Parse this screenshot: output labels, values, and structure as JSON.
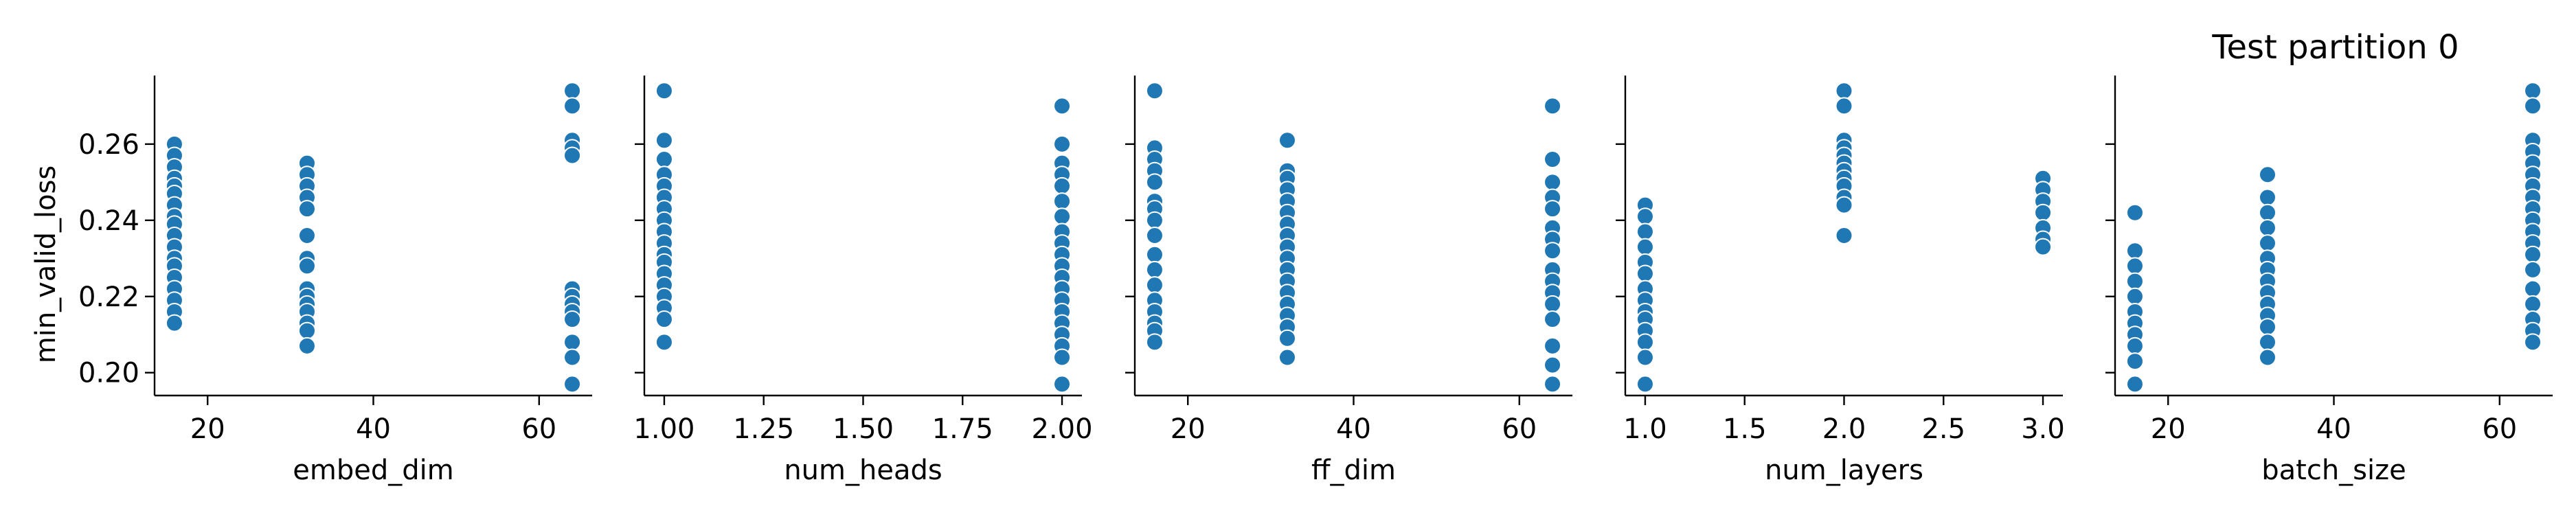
{
  "figure": {
    "title": "Test partition 0",
    "ylabel": "min_valid_loss"
  },
  "colors": {
    "marker": "#1f77b4",
    "marker_edge": "#ffffff",
    "axis": "#000000"
  },
  "chart_data": [
    {
      "type": "scatter",
      "xlabel": "embed_dim",
      "ylabel": "min_valid_loss",
      "xlim": [
        13.6,
        66.4
      ],
      "ylim": [
        0.194,
        0.278
      ],
      "x_ticks": [
        20,
        40,
        60
      ],
      "x_tick_labels": [
        "20",
        "40",
        "60"
      ],
      "y_ticks": [
        0.2,
        0.22,
        0.24,
        0.26
      ],
      "y_tick_labels": [
        "0.20",
        "0.22",
        "0.24",
        "0.26"
      ],
      "points": [
        {
          "x": 16,
          "y": 0.26
        },
        {
          "x": 16,
          "y": 0.257
        },
        {
          "x": 16,
          "y": 0.254
        },
        {
          "x": 16,
          "y": 0.251
        },
        {
          "x": 16,
          "y": 0.249
        },
        {
          "x": 16,
          "y": 0.247
        },
        {
          "x": 16,
          "y": 0.244
        },
        {
          "x": 16,
          "y": 0.241
        },
        {
          "x": 16,
          "y": 0.239
        },
        {
          "x": 16,
          "y": 0.236
        },
        {
          "x": 16,
          "y": 0.233
        },
        {
          "x": 16,
          "y": 0.23
        },
        {
          "x": 16,
          "y": 0.228
        },
        {
          "x": 16,
          "y": 0.225
        },
        {
          "x": 16,
          "y": 0.222
        },
        {
          "x": 16,
          "y": 0.219
        },
        {
          "x": 16,
          "y": 0.216
        },
        {
          "x": 16,
          "y": 0.213
        },
        {
          "x": 32,
          "y": 0.255
        },
        {
          "x": 32,
          "y": 0.252
        },
        {
          "x": 32,
          "y": 0.249
        },
        {
          "x": 32,
          "y": 0.246
        },
        {
          "x": 32,
          "y": 0.243
        },
        {
          "x": 32,
          "y": 0.236
        },
        {
          "x": 32,
          "y": 0.23
        },
        {
          "x": 32,
          "y": 0.228
        },
        {
          "x": 32,
          "y": 0.222
        },
        {
          "x": 32,
          "y": 0.22
        },
        {
          "x": 32,
          "y": 0.218
        },
        {
          "x": 32,
          "y": 0.216
        },
        {
          "x": 32,
          "y": 0.213
        },
        {
          "x": 32,
          "y": 0.211
        },
        {
          "x": 32,
          "y": 0.207
        },
        {
          "x": 64,
          "y": 0.274
        },
        {
          "x": 64,
          "y": 0.27
        },
        {
          "x": 64,
          "y": 0.261
        },
        {
          "x": 64,
          "y": 0.259
        },
        {
          "x": 64,
          "y": 0.257
        },
        {
          "x": 64,
          "y": 0.222
        },
        {
          "x": 64,
          "y": 0.22
        },
        {
          "x": 64,
          "y": 0.218
        },
        {
          "x": 64,
          "y": 0.216
        },
        {
          "x": 64,
          "y": 0.214
        },
        {
          "x": 64,
          "y": 0.208
        },
        {
          "x": 64,
          "y": 0.204
        },
        {
          "x": 64,
          "y": 0.197
        }
      ]
    },
    {
      "type": "scatter",
      "xlabel": "num_heads",
      "xlim": [
        0.95,
        2.05
      ],
      "ylim": [
        0.194,
        0.278
      ],
      "x_ticks": [
        1.0,
        1.25,
        1.5,
        1.75,
        2.0
      ],
      "x_tick_labels": [
        "1.00",
        "1.25",
        "1.50",
        "1.75",
        "2.00"
      ],
      "y_ticks": [
        0.2,
        0.22,
        0.24,
        0.26
      ],
      "points": [
        {
          "x": 1,
          "y": 0.274
        },
        {
          "x": 1,
          "y": 0.261
        },
        {
          "x": 1,
          "y": 0.256
        },
        {
          "x": 1,
          "y": 0.252
        },
        {
          "x": 1,
          "y": 0.249
        },
        {
          "x": 1,
          "y": 0.246
        },
        {
          "x": 1,
          "y": 0.243
        },
        {
          "x": 1,
          "y": 0.24
        },
        {
          "x": 1,
          "y": 0.237
        },
        {
          "x": 1,
          "y": 0.234
        },
        {
          "x": 1,
          "y": 0.231
        },
        {
          "x": 1,
          "y": 0.229
        },
        {
          "x": 1,
          "y": 0.226
        },
        {
          "x": 1,
          "y": 0.223
        },
        {
          "x": 1,
          "y": 0.22
        },
        {
          "x": 1,
          "y": 0.217
        },
        {
          "x": 1,
          "y": 0.214
        },
        {
          "x": 1,
          "y": 0.208
        },
        {
          "x": 2,
          "y": 0.27
        },
        {
          "x": 2,
          "y": 0.26
        },
        {
          "x": 2,
          "y": 0.255
        },
        {
          "x": 2,
          "y": 0.252
        },
        {
          "x": 2,
          "y": 0.249
        },
        {
          "x": 2,
          "y": 0.245
        },
        {
          "x": 2,
          "y": 0.241
        },
        {
          "x": 2,
          "y": 0.237
        },
        {
          "x": 2,
          "y": 0.234
        },
        {
          "x": 2,
          "y": 0.231
        },
        {
          "x": 2,
          "y": 0.228
        },
        {
          "x": 2,
          "y": 0.225
        },
        {
          "x": 2,
          "y": 0.222
        },
        {
          "x": 2,
          "y": 0.219
        },
        {
          "x": 2,
          "y": 0.216
        },
        {
          "x": 2,
          "y": 0.213
        },
        {
          "x": 2,
          "y": 0.21
        },
        {
          "x": 2,
          "y": 0.207
        },
        {
          "x": 2,
          "y": 0.204
        },
        {
          "x": 2,
          "y": 0.197
        }
      ]
    },
    {
      "type": "scatter",
      "xlabel": "ff_dim",
      "xlim": [
        13.6,
        66.4
      ],
      "ylim": [
        0.194,
        0.278
      ],
      "x_ticks": [
        20,
        40,
        60
      ],
      "x_tick_labels": [
        "20",
        "40",
        "60"
      ],
      "y_ticks": [
        0.2,
        0.22,
        0.24,
        0.26
      ],
      "points": [
        {
          "x": 16,
          "y": 0.274
        },
        {
          "x": 16,
          "y": 0.259
        },
        {
          "x": 16,
          "y": 0.256
        },
        {
          "x": 16,
          "y": 0.253
        },
        {
          "x": 16,
          "y": 0.25
        },
        {
          "x": 16,
          "y": 0.245
        },
        {
          "x": 16,
          "y": 0.243
        },
        {
          "x": 16,
          "y": 0.24
        },
        {
          "x": 16,
          "y": 0.236
        },
        {
          "x": 16,
          "y": 0.231
        },
        {
          "x": 16,
          "y": 0.227
        },
        {
          "x": 16,
          "y": 0.223
        },
        {
          "x": 16,
          "y": 0.219
        },
        {
          "x": 16,
          "y": 0.216
        },
        {
          "x": 16,
          "y": 0.213
        },
        {
          "x": 16,
          "y": 0.211
        },
        {
          "x": 16,
          "y": 0.208
        },
        {
          "x": 32,
          "y": 0.261
        },
        {
          "x": 32,
          "y": 0.253
        },
        {
          "x": 32,
          "y": 0.251
        },
        {
          "x": 32,
          "y": 0.248
        },
        {
          "x": 32,
          "y": 0.245
        },
        {
          "x": 32,
          "y": 0.242
        },
        {
          "x": 32,
          "y": 0.239
        },
        {
          "x": 32,
          "y": 0.236
        },
        {
          "x": 32,
          "y": 0.233
        },
        {
          "x": 32,
          "y": 0.23
        },
        {
          "x": 32,
          "y": 0.227
        },
        {
          "x": 32,
          "y": 0.224
        },
        {
          "x": 32,
          "y": 0.221
        },
        {
          "x": 32,
          "y": 0.218
        },
        {
          "x": 32,
          "y": 0.215
        },
        {
          "x": 32,
          "y": 0.212
        },
        {
          "x": 32,
          "y": 0.209
        },
        {
          "x": 32,
          "y": 0.204
        },
        {
          "x": 64,
          "y": 0.27
        },
        {
          "x": 64,
          "y": 0.256
        },
        {
          "x": 64,
          "y": 0.25
        },
        {
          "x": 64,
          "y": 0.246
        },
        {
          "x": 64,
          "y": 0.243
        },
        {
          "x": 64,
          "y": 0.238
        },
        {
          "x": 64,
          "y": 0.235
        },
        {
          "x": 64,
          "y": 0.232
        },
        {
          "x": 64,
          "y": 0.227
        },
        {
          "x": 64,
          "y": 0.224
        },
        {
          "x": 64,
          "y": 0.221
        },
        {
          "x": 64,
          "y": 0.218
        },
        {
          "x": 64,
          "y": 0.214
        },
        {
          "x": 64,
          "y": 0.207
        },
        {
          "x": 64,
          "y": 0.202
        },
        {
          "x": 64,
          "y": 0.197
        }
      ]
    },
    {
      "type": "scatter",
      "xlabel": "num_layers",
      "xlim": [
        0.9,
        3.1
      ],
      "ylim": [
        0.194,
        0.278
      ],
      "x_ticks": [
        1.0,
        1.5,
        2.0,
        2.5,
        3.0
      ],
      "x_tick_labels": [
        "1.0",
        "1.5",
        "2.0",
        "2.5",
        "3.0"
      ],
      "y_ticks": [
        0.2,
        0.22,
        0.24,
        0.26
      ],
      "points": [
        {
          "x": 1,
          "y": 0.244
        },
        {
          "x": 1,
          "y": 0.241
        },
        {
          "x": 1,
          "y": 0.237
        },
        {
          "x": 1,
          "y": 0.233
        },
        {
          "x": 1,
          "y": 0.229
        },
        {
          "x": 1,
          "y": 0.226
        },
        {
          "x": 1,
          "y": 0.222
        },
        {
          "x": 1,
          "y": 0.219
        },
        {
          "x": 1,
          "y": 0.216
        },
        {
          "x": 1,
          "y": 0.214
        },
        {
          "x": 1,
          "y": 0.211
        },
        {
          "x": 1,
          "y": 0.208
        },
        {
          "x": 1,
          "y": 0.204
        },
        {
          "x": 1,
          "y": 0.197
        },
        {
          "x": 2,
          "y": 0.274
        },
        {
          "x": 2,
          "y": 0.27
        },
        {
          "x": 2,
          "y": 0.261
        },
        {
          "x": 2,
          "y": 0.259
        },
        {
          "x": 2,
          "y": 0.257
        },
        {
          "x": 2,
          "y": 0.255
        },
        {
          "x": 2,
          "y": 0.253
        },
        {
          "x": 2,
          "y": 0.251
        },
        {
          "x": 2,
          "y": 0.249
        },
        {
          "x": 2,
          "y": 0.246
        },
        {
          "x": 2,
          "y": 0.244
        },
        {
          "x": 2,
          "y": 0.236
        },
        {
          "x": 3,
          "y": 0.251
        },
        {
          "x": 3,
          "y": 0.248
        },
        {
          "x": 3,
          "y": 0.245
        },
        {
          "x": 3,
          "y": 0.242
        },
        {
          "x": 3,
          "y": 0.238
        },
        {
          "x": 3,
          "y": 0.235
        },
        {
          "x": 3,
          "y": 0.233
        }
      ]
    },
    {
      "type": "scatter",
      "xlabel": "batch_size",
      "xlim": [
        13.6,
        66.4
      ],
      "ylim": [
        0.194,
        0.278
      ],
      "x_ticks": [
        20,
        40,
        60
      ],
      "x_tick_labels": [
        "20",
        "40",
        "60"
      ],
      "y_ticks": [
        0.2,
        0.22,
        0.24,
        0.26
      ],
      "points": [
        {
          "x": 16,
          "y": 0.242
        },
        {
          "x": 16,
          "y": 0.232
        },
        {
          "x": 16,
          "y": 0.228
        },
        {
          "x": 16,
          "y": 0.224
        },
        {
          "x": 16,
          "y": 0.22
        },
        {
          "x": 16,
          "y": 0.216
        },
        {
          "x": 16,
          "y": 0.213
        },
        {
          "x": 16,
          "y": 0.21
        },
        {
          "x": 16,
          "y": 0.207
        },
        {
          "x": 16,
          "y": 0.203
        },
        {
          "x": 16,
          "y": 0.197
        },
        {
          "x": 32,
          "y": 0.252
        },
        {
          "x": 32,
          "y": 0.246
        },
        {
          "x": 32,
          "y": 0.242
        },
        {
          "x": 32,
          "y": 0.238
        },
        {
          "x": 32,
          "y": 0.234
        },
        {
          "x": 32,
          "y": 0.23
        },
        {
          "x": 32,
          "y": 0.227
        },
        {
          "x": 32,
          "y": 0.224
        },
        {
          "x": 32,
          "y": 0.221
        },
        {
          "x": 32,
          "y": 0.218
        },
        {
          "x": 32,
          "y": 0.215
        },
        {
          "x": 32,
          "y": 0.212
        },
        {
          "x": 32,
          "y": 0.208
        },
        {
          "x": 32,
          "y": 0.204
        },
        {
          "x": 64,
          "y": 0.274
        },
        {
          "x": 64,
          "y": 0.27
        },
        {
          "x": 64,
          "y": 0.261
        },
        {
          "x": 64,
          "y": 0.258
        },
        {
          "x": 64,
          "y": 0.255
        },
        {
          "x": 64,
          "y": 0.252
        },
        {
          "x": 64,
          "y": 0.249
        },
        {
          "x": 64,
          "y": 0.246
        },
        {
          "x": 64,
          "y": 0.243
        },
        {
          "x": 64,
          "y": 0.24
        },
        {
          "x": 64,
          "y": 0.237
        },
        {
          "x": 64,
          "y": 0.234
        },
        {
          "x": 64,
          "y": 0.231
        },
        {
          "x": 64,
          "y": 0.227
        },
        {
          "x": 64,
          "y": 0.222
        },
        {
          "x": 64,
          "y": 0.218
        },
        {
          "x": 64,
          "y": 0.214
        },
        {
          "x": 64,
          "y": 0.211
        },
        {
          "x": 64,
          "y": 0.208
        }
      ]
    }
  ]
}
